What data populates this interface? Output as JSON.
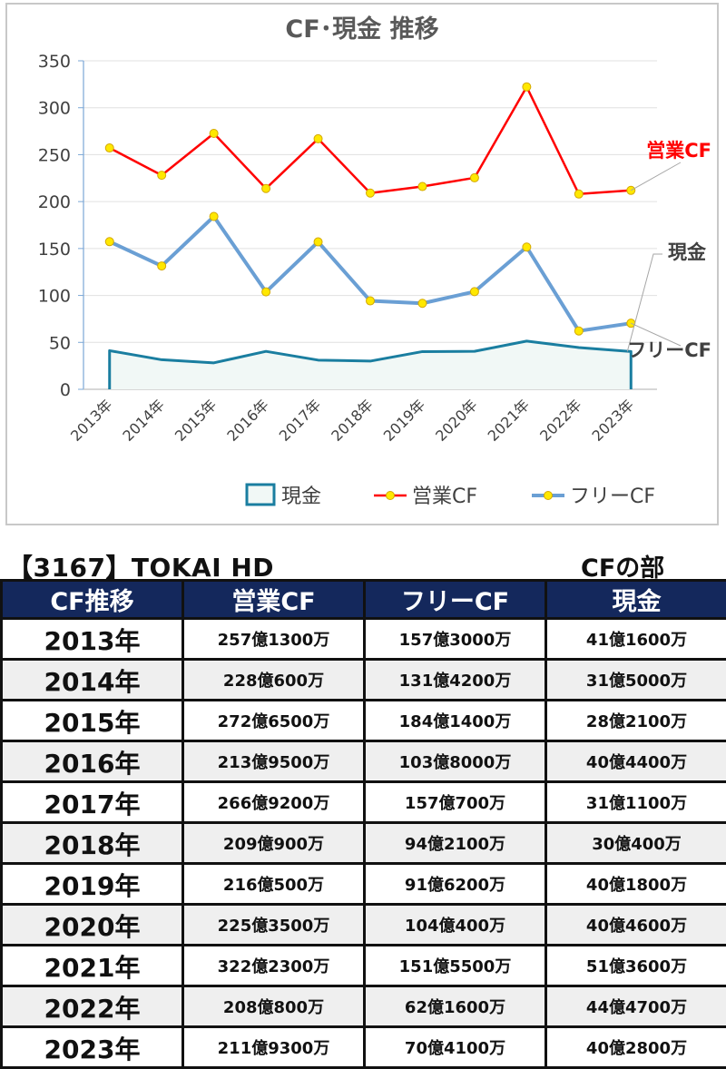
{
  "chart_data": {
    "type": "line",
    "title": "CF･現金 推移",
    "categories": [
      "2013年",
      "2014年",
      "2015年",
      "2016年",
      "2017年",
      "2018年",
      "2019年",
      "2020年",
      "2021年",
      "2022年",
      "2023年"
    ],
    "ylim": [
      0,
      350
    ],
    "yticks": [
      "0",
      "50",
      "100",
      "150",
      "200",
      "250",
      "300",
      "350"
    ],
    "series": [
      {
        "name": "現金",
        "style": "area",
        "color": "#1a7ea0",
        "fill": "#f1f8f6",
        "values": [
          41.16,
          31.5,
          28.21,
          40.44,
          31.11,
          30.04,
          40.18,
          40.46,
          51.36,
          44.47,
          40.28
        ]
      },
      {
        "name": "営業CF",
        "style": "line-markers",
        "color": "#ff0000",
        "values": [
          257.13,
          228.06,
          272.65,
          213.95,
          266.92,
          209.09,
          216.05,
          225.35,
          322.23,
          208.08,
          211.93
        ]
      },
      {
        "name": "フリーCF",
        "style": "line-markers",
        "color": "#6a9fd4",
        "values": [
          157.3,
          131.42,
          184.14,
          103.8,
          157.07,
          94.21,
          91.62,
          104.04,
          151.55,
          62.16,
          70.41
        ]
      }
    ],
    "labels": {
      "operating": "営業CF",
      "cash": "現金",
      "free": "フリーCF"
    },
    "legend": {
      "position": "bottom",
      "items": [
        "現金",
        "営業CF",
        "フリーCF"
      ]
    },
    "marker_color": "#ffe800",
    "grid": true
  },
  "header": {
    "company": "【3167】TOKAI HD",
    "section": "CFの部"
  },
  "table": {
    "columns": [
      "CF推移",
      "営業CF",
      "フリーCF",
      "現金"
    ],
    "rows": [
      [
        "2013年",
        "257億1300万",
        "157億3000万",
        "41億1600万"
      ],
      [
        "2014年",
        "228億600万",
        "131億4200万",
        "31億5000万"
      ],
      [
        "2015年",
        "272億6500万",
        "184億1400万",
        "28億2100万"
      ],
      [
        "2016年",
        "213億9500万",
        "103億8000万",
        "40億4400万"
      ],
      [
        "2017年",
        "266億9200万",
        "157億700万",
        "31億1100万"
      ],
      [
        "2018年",
        "209億900万",
        "94億2100万",
        "30億400万"
      ],
      [
        "2019年",
        "216億500万",
        "91億6200万",
        "40億1800万"
      ],
      [
        "2020年",
        "225億3500万",
        "104億400万",
        "40億4600万"
      ],
      [
        "2021年",
        "322億2300万",
        "151億5500万",
        "51億3600万"
      ],
      [
        "2022年",
        "208億800万",
        "62億1600万",
        "44億4700万"
      ],
      [
        "2023年",
        "211億9300万",
        "70億4100万",
        "40億2800万"
      ]
    ]
  }
}
